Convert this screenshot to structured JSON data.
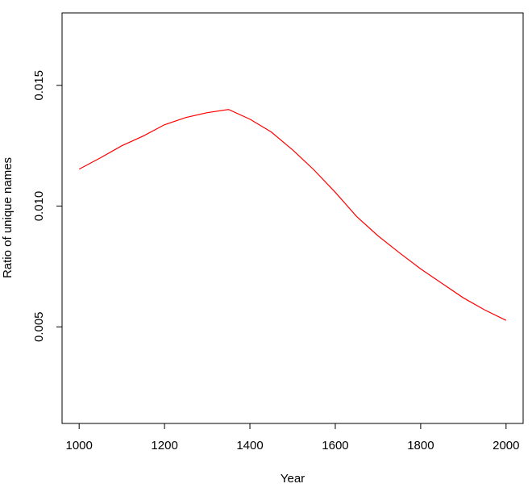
{
  "chart_data": {
    "type": "line",
    "x_label": "Year",
    "y_label": "Ratio of unique names",
    "x": [
      1000,
      1050,
      1100,
      1150,
      1200,
      1250,
      1300,
      1350,
      1400,
      1450,
      1500,
      1550,
      1600,
      1650,
      1700,
      1750,
      1800,
      1850,
      1900,
      1950,
      2000
    ],
    "series": [
      {
        "color": "#ff0000",
        "values": [
          0.01153,
          0.012,
          0.0125,
          0.0129,
          0.01337,
          0.01367,
          0.01387,
          0.014,
          0.0136,
          0.01307,
          0.01233,
          0.0115,
          0.01057,
          0.00957,
          0.00877,
          0.00807,
          0.0074,
          0.0068,
          0.0062,
          0.0057,
          0.00527
        ]
      }
    ],
    "xlim": [
      960,
      2040
    ],
    "xticks": [
      1000,
      1200,
      1400,
      1600,
      1800,
      2000
    ],
    "ylim": [
      0.001,
      0.018
    ],
    "yticks": [
      0.005,
      {
        "value": 0.01,
        "label": "0.010"
      },
      0.015
    ],
    "grid": false
  }
}
